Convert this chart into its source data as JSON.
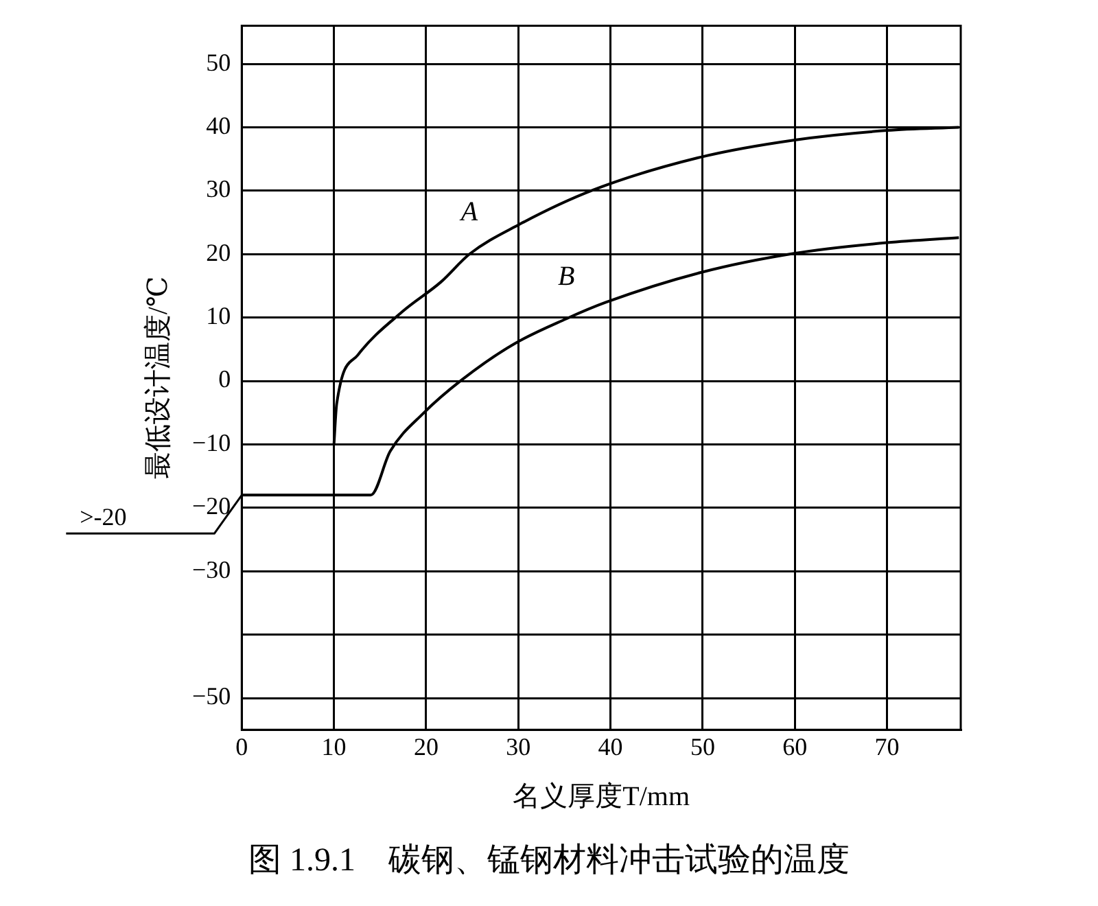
{
  "chart_data": {
    "type": "line",
    "title": "图 1.9.1　碳钢、锰钢材料冲击试验的温度",
    "xlabel": "名义厚度T/mm",
    "ylabel": "最低设计温度/℃",
    "xlim": [
      0,
      78
    ],
    "xticks": [
      0,
      10,
      20,
      30,
      40,
      50,
      60,
      70
    ],
    "ylim": [
      -55,
      56
    ],
    "yticks": [
      -50,
      {
        "value": -40,
        "label": null
      },
      -30,
      -20,
      -10,
      0,
      10,
      20,
      30,
      40,
      50
    ],
    "grid": true,
    "legend": false,
    "marker": "none",
    "line_style": "solid",
    "annotations": [
      {
        "text": ">-20",
        "x": 0,
        "y": -18
      }
    ],
    "series": [
      {
        "name": "A",
        "color": "#000000",
        "x": [
          10,
          10.3,
          12.6,
          17.4,
          21.6,
          24.7,
          30,
          38.1,
          49.8,
          60,
          70,
          77.8
        ],
        "values": [
          -10,
          -3.6,
          4.1,
          10.9,
          15.6,
          20,
          24.6,
          30.1,
          35.3,
          38,
          39.5,
          40
        ]
      },
      {
        "name": "B",
        "color": "#000000",
        "x": [
          0,
          14,
          16.1,
          19.7,
          23.9,
          29.5,
          35.2,
          39.5,
          49.8,
          59.9,
          70,
          77.8
        ],
        "values": [
          -18,
          -18,
          -11.1,
          -5.1,
          0.2,
          5.8,
          9.8,
          12.4,
          17.1,
          20.1,
          21.8,
          22.6
        ]
      }
    ]
  }
}
